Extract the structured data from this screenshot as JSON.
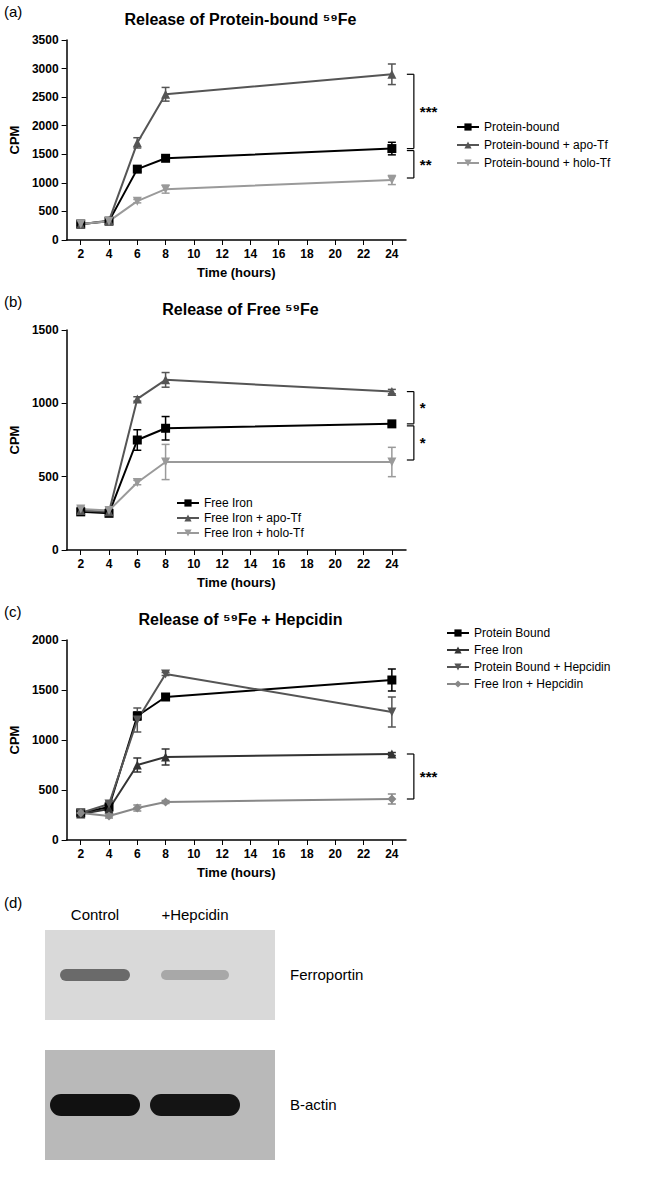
{
  "chart_data": [
    {
      "type": "line",
      "panel": "(a)",
      "title": "Release of Protein-bound ⁵⁹Fe",
      "x_label": "Time (hours)",
      "y_label": "CPM",
      "x": [
        2,
        4,
        6,
        8,
        24
      ],
      "xlim": [
        1,
        25
      ],
      "xticks": [
        2,
        4,
        6,
        8,
        10,
        12,
        14,
        16,
        18,
        20,
        22,
        24
      ],
      "ylim": [
        0,
        3500
      ],
      "yticks": [
        0,
        500,
        1000,
        1500,
        2000,
        2500,
        3000,
        3500
      ],
      "grid": false,
      "legend": "right",
      "series": [
        {
          "name": "Protein-bound",
          "color": "#000000",
          "marker": "square",
          "values": [
            280,
            330,
            1240,
            1430,
            1600
          ],
          "error": [
            20,
            20,
            40,
            30,
            110
          ]
        },
        {
          "name": "Protein-bound + apo-Tf",
          "color": "#555555",
          "marker": "triangle",
          "values": [
            270,
            340,
            1700,
            2550,
            2900
          ],
          "error": [
            20,
            20,
            90,
            120,
            180
          ]
        },
        {
          "name": "Protein-bound + holo-Tf",
          "color": "#9a9a9a",
          "marker": "triangle-down",
          "values": [
            280,
            330,
            680,
            890,
            1050
          ],
          "error": [
            20,
            20,
            30,
            70,
            80
          ]
        }
      ],
      "annotations": [
        {
          "text": "***",
          "between": [
            "Protein-bound + apo-Tf",
            "Protein-bound"
          ]
        },
        {
          "text": "**",
          "between": [
            "Protein-bound",
            "Protein-bound + holo-Tf"
          ]
        }
      ]
    },
    {
      "type": "line",
      "panel": "(b)",
      "title": "Release of Free ⁵⁹Fe",
      "x_label": "Time (hours)",
      "y_label": "CPM",
      "x": [
        2,
        4,
        6,
        8,
        24
      ],
      "xlim": [
        1,
        25
      ],
      "xticks": [
        2,
        4,
        6,
        8,
        10,
        12,
        14,
        16,
        18,
        20,
        22,
        24
      ],
      "ylim": [
        0,
        1500
      ],
      "yticks": [
        0,
        500,
        1000,
        1500
      ],
      "grid": false,
      "legend": "bottom",
      "series": [
        {
          "name": "Free Iron",
          "color": "#000000",
          "marker": "square",
          "values": [
            260,
            250,
            750,
            830,
            860
          ],
          "error": [
            20,
            20,
            70,
            80,
            15
          ]
        },
        {
          "name": "Free Iron + apo-Tf",
          "color": "#555555",
          "marker": "triangle",
          "values": [
            270,
            260,
            1030,
            1160,
            1080
          ],
          "error": [
            20,
            20,
            15,
            50,
            15
          ]
        },
        {
          "name": "Free Iron + holo-Tf",
          "color": "#9a9a9a",
          "marker": "triangle-down",
          "values": [
            280,
            270,
            460,
            600,
            600
          ],
          "error": [
            20,
            20,
            15,
            120,
            100
          ]
        }
      ],
      "annotations": [
        {
          "text": "*",
          "between": [
            "Free Iron + apo-Tf",
            "Free Iron"
          ]
        },
        {
          "text": "*",
          "between": [
            "Free Iron",
            "Free Iron + holo-Tf"
          ]
        }
      ]
    },
    {
      "type": "line",
      "panel": "(c)",
      "title": "Release of ⁵⁹Fe + Hepcidin",
      "x_label": "Time (hours)",
      "y_label": "CPM",
      "x": [
        2,
        4,
        6,
        8,
        24
      ],
      "xlim": [
        1,
        25
      ],
      "xticks": [
        2,
        4,
        6,
        8,
        10,
        12,
        14,
        16,
        18,
        20,
        22,
        24
      ],
      "ylim": [
        0,
        2000
      ],
      "yticks": [
        0,
        500,
        1000,
        1500,
        2000
      ],
      "grid": false,
      "legend": "top right",
      "series": [
        {
          "name": "Protein Bound",
          "color": "#000000",
          "marker": "square",
          "values": [
            270,
            330,
            1240,
            1430,
            1600
          ],
          "error": [
            20,
            20,
            40,
            30,
            110
          ]
        },
        {
          "name": "Free Iron",
          "color": "#333333",
          "marker": "triangle",
          "values": [
            260,
            310,
            750,
            830,
            860
          ],
          "error": [
            20,
            20,
            70,
            80,
            15
          ]
        },
        {
          "name": "Protein Bound + Hepcidin",
          "color": "#555555",
          "marker": "triangle-down",
          "values": [
            270,
            360,
            1200,
            1660,
            1280
          ],
          "error": [
            20,
            20,
            120,
            15,
            150
          ]
        },
        {
          "name": "Free Iron + Hepcidin",
          "color": "#888888",
          "marker": "diamond",
          "values": [
            270,
            240,
            320,
            380,
            410
          ],
          "error": [
            20,
            20,
            30,
            15,
            50
          ]
        }
      ],
      "annotations": [
        {
          "text": "***",
          "between": [
            "Free Iron",
            "Free Iron + Hepcidin"
          ]
        }
      ]
    }
  ],
  "blot": {
    "panel": "(d)",
    "lanes": [
      "Control",
      "+Hepcidin"
    ],
    "rows": [
      "Ferroportin",
      "B-actin"
    ]
  }
}
